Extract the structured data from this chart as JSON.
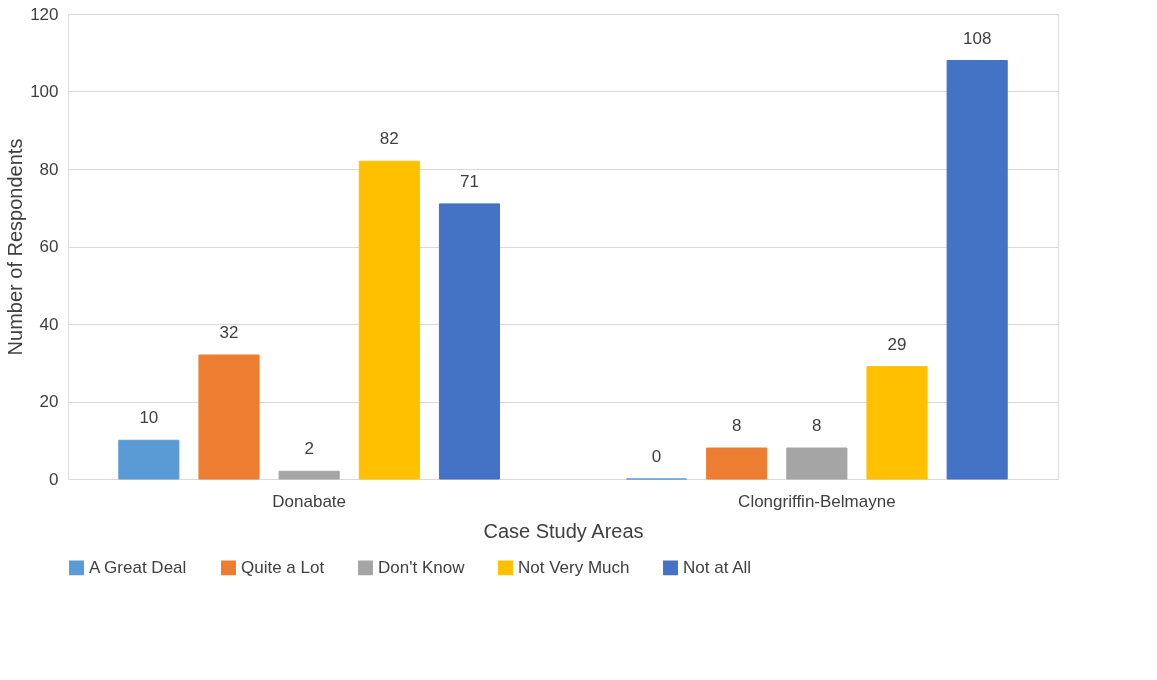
{
  "chart_data": {
    "type": "bar",
    "xlabel": "Case Study Areas",
    "ylabel": "Number of Respondents",
    "categories": [
      "Donabate",
      "Clongriffin-Belmayne"
    ],
    "series": [
      {
        "name": "A Great Deal",
        "color": "#5b9bd5",
        "values": [
          10,
          0
        ]
      },
      {
        "name": "Quite a Lot",
        "color": "#ed7d31",
        "values": [
          32,
          8
        ]
      },
      {
        "name": "Don't Know",
        "color": "#a5a5a5",
        "values": [
          2,
          8
        ]
      },
      {
        "name": "Not Very Much",
        "color": "#ffc000",
        "values": [
          82,
          29
        ]
      },
      {
        "name": "Not at All",
        "color": "#4472c4",
        "values": [
          71,
          108
        ]
      }
    ],
    "ylim": [
      0,
      120
    ],
    "yticks": [
      0,
      20,
      40,
      60,
      80,
      100,
      120
    ],
    "grid": "y",
    "legend": "bottom",
    "data_labels": true
  }
}
